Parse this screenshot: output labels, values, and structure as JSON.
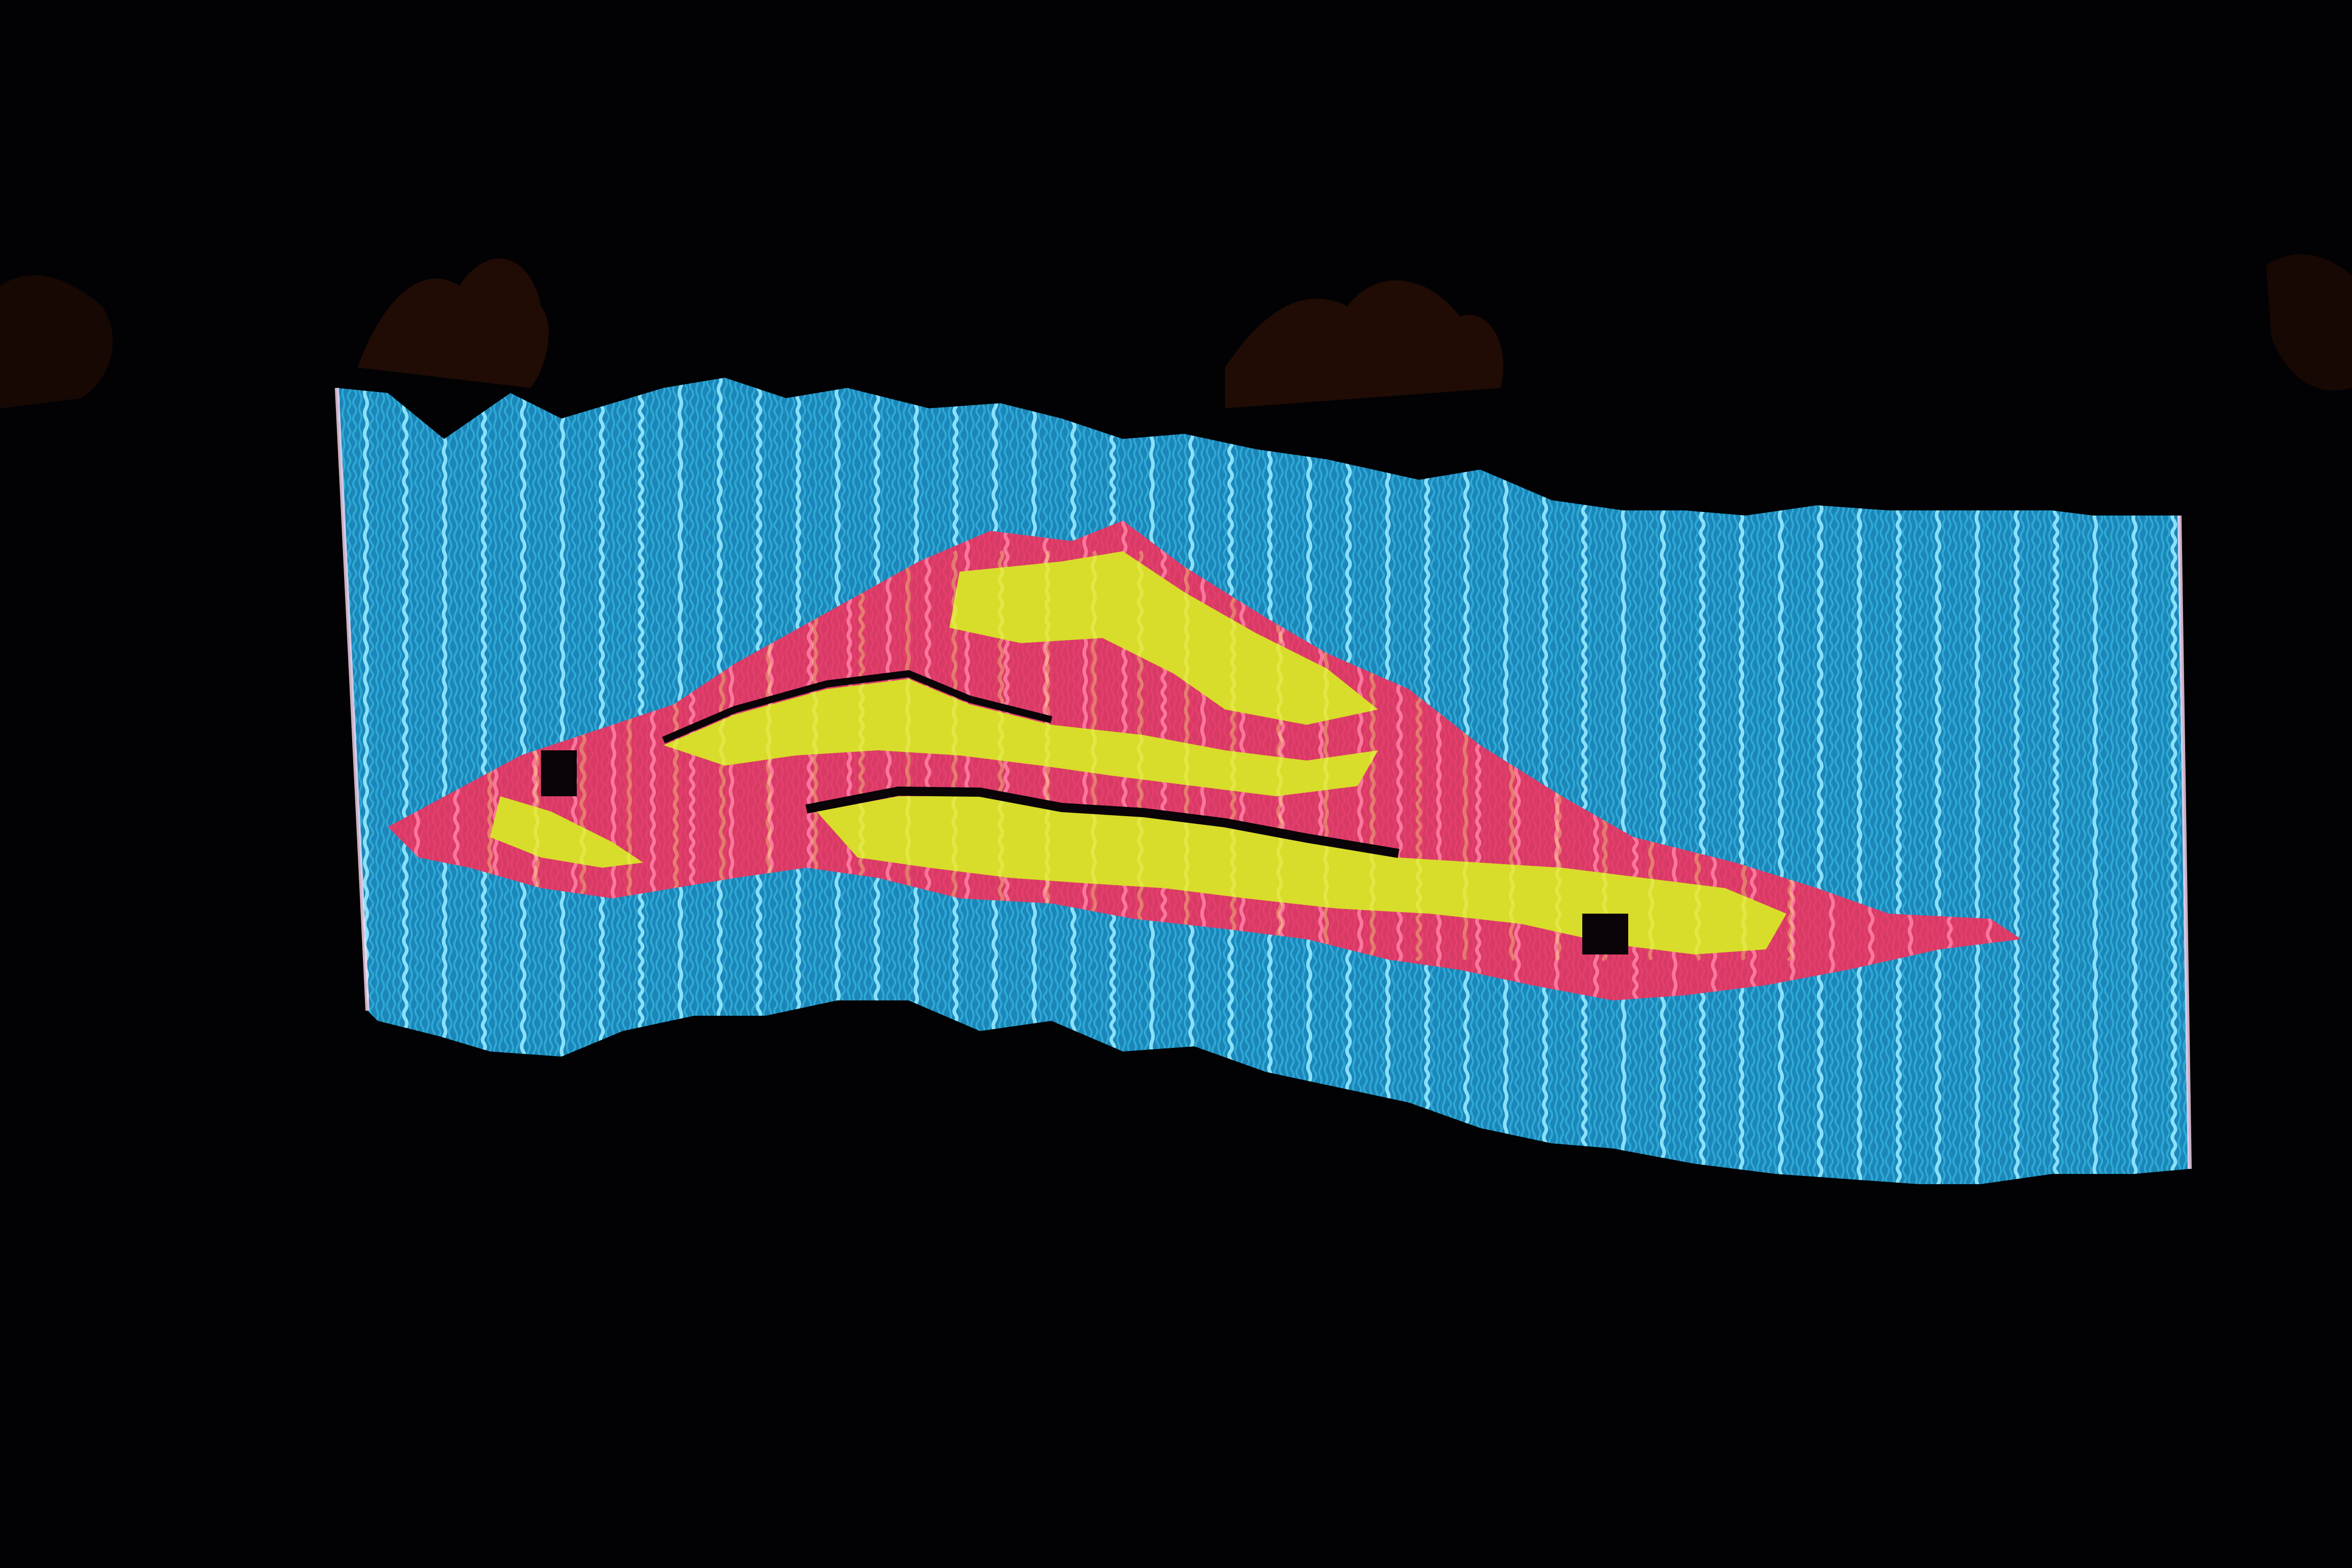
{
  "scene": {
    "subject": "light-painting",
    "colors": {
      "background": "#020204",
      "foliage": "#3a1408",
      "cyan": "#34b4e0",
      "cyan_bright": "#8fe6ff",
      "pink": "#e8416f",
      "pink_bright": "#ff7aa0",
      "yellow": "#d8dc2a",
      "yellow_bright": "#f6ff7a",
      "edge_white": "#ffd9f0"
    }
  }
}
